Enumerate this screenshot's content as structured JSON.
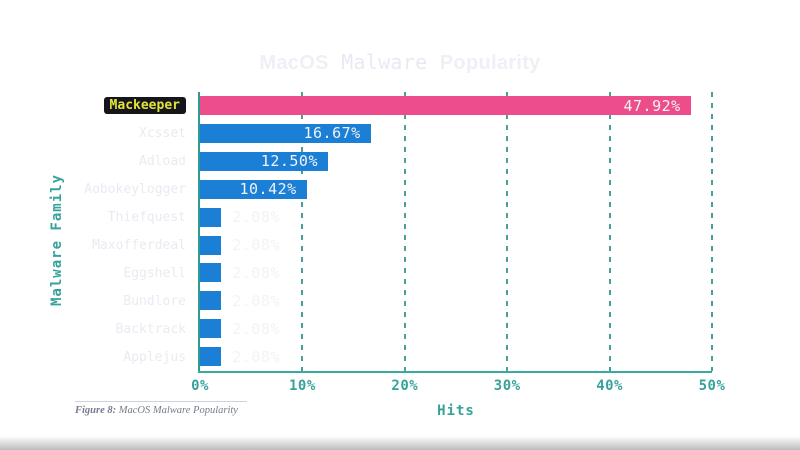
{
  "title": {
    "part1": "MacOS",
    "part2": "Malware",
    "part3": "Popularity"
  },
  "chart_data": {
    "type": "bar",
    "orientation": "horizontal",
    "title": "MacOS Malware Popularity",
    "xlabel": "Hits",
    "ylabel": "Malware Family",
    "categories": [
      "Mackeeper",
      "Xcsset",
      "Adload",
      "Aobokeylogger",
      "Thiefquest",
      "Maxofferdeal",
      "Eggshell",
      "Bundlore",
      "Backtrack",
      "Applejus"
    ],
    "values": [
      47.92,
      16.67,
      12.5,
      10.42,
      2.08,
      2.08,
      2.08,
      2.08,
      2.08,
      2.08
    ],
    "value_labels": [
      "47.92%",
      "16.67%",
      "12.50%",
      "10.42%",
      "2.08%",
      "2.08%",
      "2.08%",
      "2.08%",
      "2.08%",
      "2.08%"
    ],
    "xticks": [
      "0%",
      "10%",
      "20%",
      "30%",
      "40%",
      "50%"
    ],
    "xlim": [
      0,
      50
    ],
    "grid": "dashed-vertical-teal",
    "legend": "none",
    "highlight_category": "Mackeeper"
  },
  "colors": {
    "bar_default": "#1b7fd6",
    "bar_highlight": "#ee4d8b",
    "accent_teal": "#36a39b",
    "highlight_label_bg": "#15151b",
    "highlight_label_fg": "#e3e438",
    "value_text": "#f2f3f7",
    "category_text": "#e9ebf2",
    "background_base": "#2e314a"
  },
  "caption": {
    "prefix": "Figure 8:",
    "text": " MacOS Malware Popularity"
  }
}
